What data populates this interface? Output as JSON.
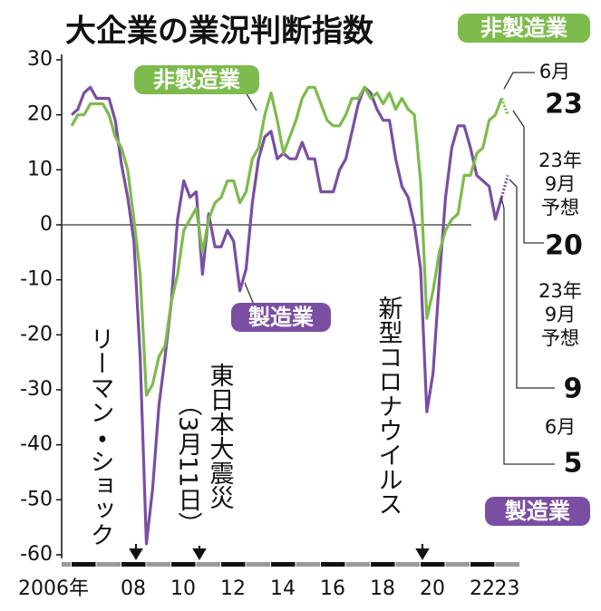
{
  "chart_data": {
    "type": "line",
    "title": "大企業の業況判断指数",
    "x": [
      2006,
      2006.25,
      2006.5,
      2006.75,
      2007,
      2007.25,
      2007.5,
      2007.75,
      2008,
      2008.25,
      2008.5,
      2008.75,
      2009,
      2009.25,
      2009.5,
      2009.75,
      2010,
      2010.25,
      2010.5,
      2010.75,
      2011,
      2011.25,
      2011.5,
      2011.75,
      2012,
      2012.25,
      2012.5,
      2012.75,
      2013,
      2013.25,
      2013.5,
      2013.75,
      2014,
      2014.25,
      2014.5,
      2014.75,
      2015,
      2015.25,
      2015.5,
      2015.75,
      2016,
      2016.25,
      2016.5,
      2016.75,
      2017,
      2017.25,
      2017.5,
      2017.75,
      2018,
      2018.25,
      2018.5,
      2018.75,
      2019,
      2019.25,
      2019.5,
      2019.75,
      2020,
      2020.25,
      2020.5,
      2020.75,
      2021,
      2021.25,
      2021.5,
      2021.75,
      2022,
      2022.25,
      2022.5,
      2022.75,
      2023,
      2023.25
    ],
    "forecast_x": 2023.5,
    "series": [
      {
        "name": "製造業",
        "color": "#7a4ea3",
        "values": [
          20,
          21,
          24,
          25,
          23,
          23,
          23,
          19,
          11,
          5,
          -3,
          -24,
          -58,
          -48,
          -33,
          -24,
          -14,
          1,
          8,
          5,
          6,
          -9,
          2,
          -4,
          -4,
          -1,
          -3,
          -12,
          -8,
          4,
          12,
          16,
          17,
          12,
          13,
          12,
          12,
          15,
          12,
          12,
          6,
          6,
          6,
          10,
          12,
          17,
          22,
          25,
          24,
          21,
          19,
          19,
          12,
          7,
          5,
          0,
          -8,
          -34,
          -27,
          -10,
          5,
          14,
          18,
          18,
          14,
          9,
          8,
          7,
          1,
          5
        ],
        "forecast": 9
      },
      {
        "name": "非製造業",
        "color": "#7dbb4c",
        "values": [
          18,
          20,
          20,
          22,
          22,
          22,
          20,
          16,
          14,
          10,
          1,
          -9,
          -31,
          -29,
          -24,
          -22,
          -14,
          -9,
          -1,
          1,
          3,
          -5,
          1,
          4,
          5,
          8,
          8,
          4,
          6,
          12,
          14,
          20,
          24,
          19,
          13,
          16,
          19,
          23,
          25,
          25,
          22,
          19,
          18,
          18,
          20,
          23,
          23,
          25,
          23,
          24,
          22,
          24,
          21,
          23,
          21,
          20,
          8,
          -17,
          -12,
          -5,
          -1,
          1,
          2,
          9,
          9,
          13,
          14,
          19,
          20,
          23
        ],
        "forecast": 20
      }
    ],
    "xlim": [
      2006,
      2024
    ],
    "xticks": [
      {
        "value": 2006,
        "label": "2006年"
      },
      {
        "value": 2008,
        "label": "08"
      },
      2010,
      2012,
      2014,
      2016,
      2018,
      2020,
      2022,
      2023
    ],
    "ylim": [
      -60,
      30
    ],
    "yticks": [
      -60,
      -50,
      -40,
      -30,
      -20,
      -10,
      0,
      10,
      20,
      30
    ],
    "annotations": {
      "lehman": "リーマン・ショック",
      "earthquake": [
        "東日本大震災",
        "（3月11日）"
      ],
      "covid": "新型コロナウイルス",
      "nonmfg_june": "6月",
      "nonmfg_forecast": [
        "23年",
        "9月",
        "予想"
      ],
      "mfg_forecast": [
        "23年",
        "9月",
        "予想"
      ],
      "mfg_june": "6月"
    }
  }
}
